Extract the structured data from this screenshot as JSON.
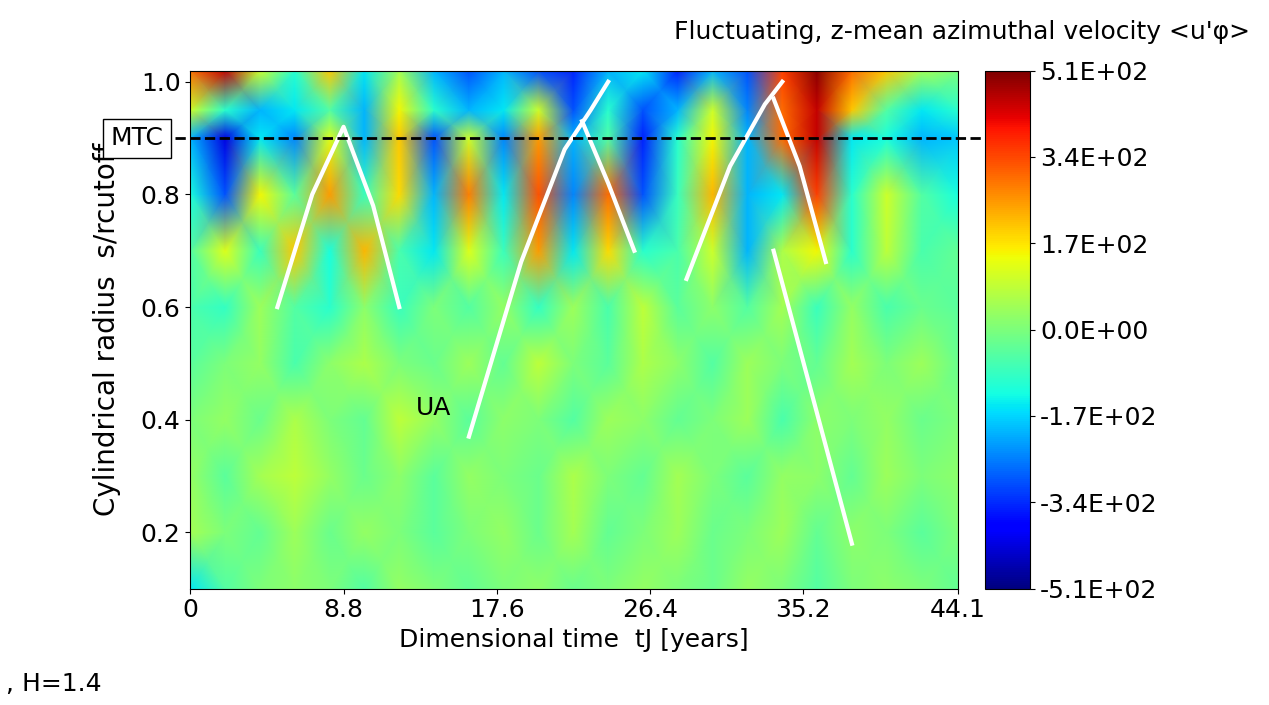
{
  "chart_data": {
    "type": "heatmap",
    "title": "Fluctuating, z-mean azimuthal velocity <u'φ>",
    "x_label": "Dimensional time  tJ [years]",
    "y_label": "Cylindrical radius  s/rcutoff",
    "footnote": ", H=1.4",
    "color": "jet",
    "x": [
      0,
      2,
      4,
      6,
      8,
      10,
      12,
      14,
      16,
      18,
      20,
      22,
      24,
      26,
      28,
      30,
      32,
      34,
      36,
      38,
      40,
      42,
      44.1
    ],
    "y": [
      0.1,
      0.2,
      0.3,
      0.4,
      0.5,
      0.6,
      0.7,
      0.8,
      0.9,
      0.95,
      1.02
    ],
    "cells": [
      [
        -150,
        -50,
        0,
        20,
        0,
        -50,
        30,
        0,
        -30,
        0,
        20,
        -20,
        0,
        30,
        0,
        -20,
        30,
        0,
        -50,
        0,
        20,
        0,
        -30
      ],
      [
        50,
        0,
        -30,
        40,
        -20,
        30,
        0,
        -40,
        0,
        30,
        -20,
        50,
        -30,
        0,
        40,
        -20,
        0,
        40,
        -30,
        20,
        0,
        -40,
        0
      ],
      [
        30,
        -40,
        50,
        80,
        30,
        -20,
        20,
        -40,
        30,
        0,
        -20,
        60,
        0,
        -30,
        50,
        0,
        -40,
        30,
        20,
        -30,
        40,
        0,
        20
      ],
      [
        0,
        30,
        -20,
        60,
        0,
        -30,
        80,
        30,
        -40,
        20,
        0,
        -50,
        40,
        20,
        -30,
        0,
        40,
        -60,
        20,
        0,
        30,
        -20,
        0
      ],
      [
        -40,
        0,
        30,
        -60,
        20,
        60,
        0,
        -20,
        40,
        -30,
        80,
        0,
        -40,
        60,
        20,
        -50,
        40,
        0,
        -30,
        50,
        0,
        40,
        -20
      ],
      [
        -60,
        -90,
        40,
        -50,
        -100,
        20,
        -80,
        0,
        -50,
        30,
        -90,
        40,
        -60,
        80,
        -40,
        20,
        -50,
        50,
        -80,
        30,
        -60,
        -20,
        -40
      ],
      [
        -50,
        120,
        -80,
        200,
        -120,
        220,
        -60,
        -150,
        120,
        -80,
        250,
        -150,
        180,
        -100,
        -60,
        100,
        -200,
        60,
        150,
        -100,
        80,
        -60,
        -30
      ],
      [
        -120,
        -300,
        150,
        -40,
        250,
        -80,
        180,
        -200,
        280,
        -150,
        330,
        -250,
        300,
        -300,
        -80,
        220,
        -200,
        -150,
        350,
        -100,
        100,
        -50,
        -120
      ],
      [
        -200,
        -420,
        -150,
        -250,
        120,
        -200,
        200,
        -300,
        100,
        -250,
        250,
        -200,
        -50,
        -350,
        -100,
        150,
        -200,
        300,
        450,
        -150,
        -120,
        -200,
        -180
      ],
      [
        100,
        -100,
        -200,
        -150,
        -50,
        -200,
        150,
        -100,
        -200,
        -150,
        100,
        -300,
        -100,
        -300,
        -200,
        100,
        -250,
        300,
        450,
        200,
        -50,
        -150,
        -100
      ],
      [
        300,
        450,
        100,
        -100,
        200,
        -150,
        50,
        -200,
        -300,
        -200,
        -300,
        -350,
        -200,
        -150,
        -350,
        -200,
        -300,
        350,
        500,
        300,
        200,
        50,
        0
      ]
    ],
    "xlim": [
      0,
      44.1
    ],
    "ylim": [
      0.1,
      1.02
    ],
    "xticks": [
      0,
      8.8,
      17.6,
      26.4,
      35.2,
      44.1
    ],
    "yticks": [
      0.2,
      0.4,
      0.6,
      0.8,
      1.0
    ],
    "colorbar_range": [
      -510,
      510
    ],
    "colorbar_ticks": [
      {
        "value": 510,
        "label": "5.1E+02"
      },
      {
        "value": 340,
        "label": "3.4E+02"
      },
      {
        "value": 170,
        "label": "1.7E+02"
      },
      {
        "value": 0,
        "label": "0.0E+00"
      },
      {
        "value": -170,
        "label": "-1.7E+02"
      },
      {
        "value": -340,
        "label": "-3.4E+02"
      },
      {
        "value": -510,
        "label": "-5.1E+02"
      }
    ],
    "mtc": {
      "label": "MTC",
      "y": 0.9
    },
    "u_a": {
      "label": "UA",
      "x": 15.0,
      "y": 0.42
    },
    "white_lines": [
      [
        [
          5,
          0.6
        ],
        [
          7,
          0.8
        ],
        [
          8.8,
          0.92
        ],
        [
          10.5,
          0.78
        ],
        [
          12,
          0.6
        ]
      ],
      [
        [
          16,
          0.37
        ],
        [
          19,
          0.68
        ],
        [
          21.5,
          0.88
        ],
        [
          23,
          0.95
        ],
        [
          24,
          1.0
        ]
      ],
      [
        [
          22.5,
          0.93
        ],
        [
          24,
          0.82
        ],
        [
          25.5,
          0.7
        ]
      ],
      [
        [
          28.5,
          0.65
        ],
        [
          31,
          0.85
        ],
        [
          33,
          0.96
        ],
        [
          34,
          1.0
        ]
      ],
      [
        [
          33.5,
          0.97
        ],
        [
          35,
          0.85
        ],
        [
          36.5,
          0.68
        ]
      ],
      [
        [
          33.5,
          0.7
        ],
        [
          38,
          0.18
        ]
      ]
    ]
  }
}
